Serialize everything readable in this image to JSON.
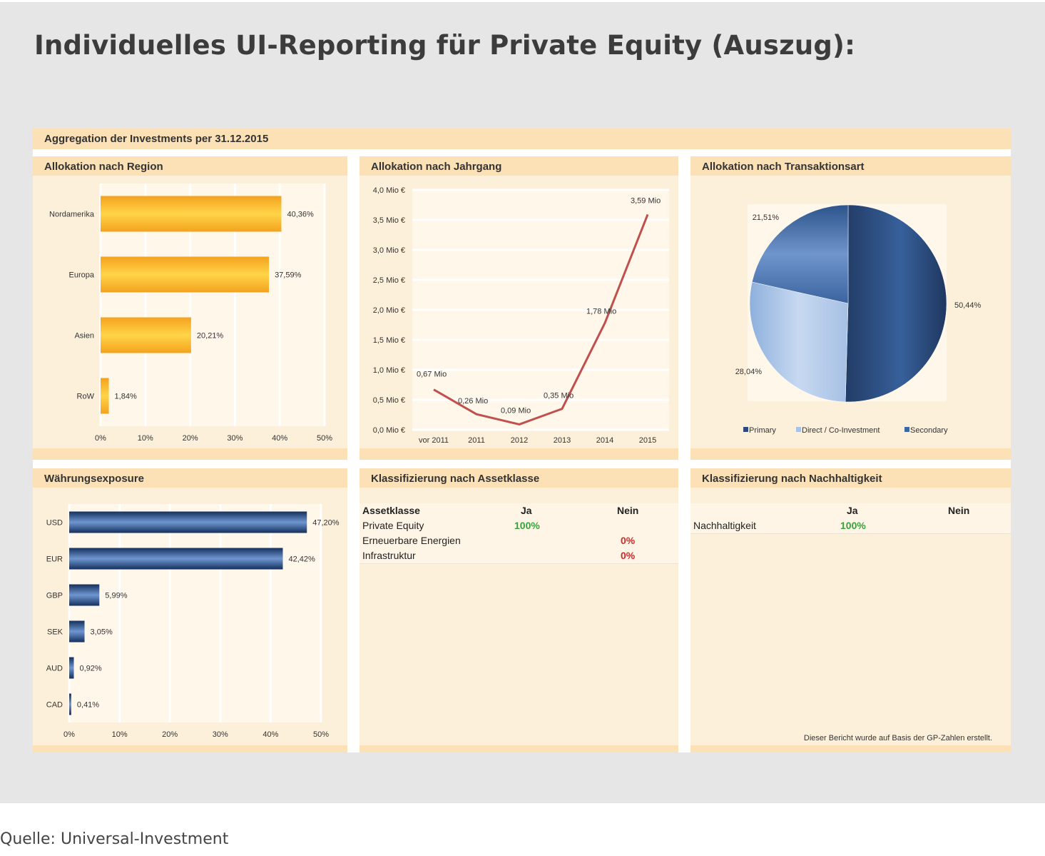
{
  "page": {
    "title": "Individuelles UI-Reporting für Private Equity (Auszug):",
    "source": "Quelle: Universal-Investment"
  },
  "report": {
    "header": "Aggregation der Investments per 31.12.2015",
    "footnote": "Dieser Bericht wurde auf Basis der GP-Zahlen erstellt."
  },
  "chart_data": [
    {
      "id": "region",
      "type": "bar",
      "orientation": "horizontal",
      "title": "Allokation nach Region",
      "categories": [
        "Nordamerika",
        "Europa",
        "Asien",
        "RoW"
      ],
      "values": [
        40.36,
        37.59,
        20.21,
        1.84
      ],
      "labels": [
        "40,36%",
        "37,59%",
        "20,21%",
        "1,84%"
      ],
      "xlim": [
        0,
        50
      ],
      "xticks": [
        "0%",
        "10%",
        "20%",
        "30%",
        "40%",
        "50%"
      ],
      "grid": true,
      "colors": {
        "bar": "#f5a623",
        "bar_light": "#ffd04a"
      }
    },
    {
      "id": "vintage",
      "type": "line",
      "title": "Allokation nach Jahrgang",
      "categories": [
        "vor 2011",
        "2011",
        "2012",
        "2013",
        "2014",
        "2015"
      ],
      "values": [
        0.67,
        0.26,
        0.09,
        0.35,
        1.78,
        3.59
      ],
      "labels": [
        "0,67 Mio",
        "0,26 Mio",
        "0,09 Mio",
        "0,35 Mio",
        "1,78 Mio",
        "3,59 Mio"
      ],
      "ylim": [
        0,
        4
      ],
      "yticks": [
        "0,0 Mio €",
        "0,5 Mio €",
        "1,0 Mio €",
        "1,5 Mio €",
        "2,0 Mio €",
        "2,5 Mio €",
        "3,0 Mio €",
        "3,5 Mio €",
        "4,0 Mio €"
      ],
      "grid": true,
      "colors": {
        "line": "#c0504d"
      }
    },
    {
      "id": "transaction",
      "type": "pie",
      "title": "Allokation nach Transaktionsart",
      "categories": [
        "Primary",
        "Direct / Co-Investment",
        "Secondary"
      ],
      "values": [
        50.44,
        28.04,
        21.51
      ],
      "labels": [
        "50,44%",
        "28,04%",
        "21,51%"
      ],
      "legend_position": "bottom",
      "colors": {
        "Primary": "#2b4a7a",
        "Direct / Co-Investment": "#a9c3e6",
        "Secondary": "#3d67a3"
      }
    },
    {
      "id": "currency",
      "type": "bar",
      "orientation": "horizontal",
      "title": "Währungsexposure",
      "categories": [
        "USD",
        "EUR",
        "GBP",
        "SEK",
        "AUD",
        "CAD"
      ],
      "values": [
        47.2,
        42.42,
        5.99,
        3.05,
        0.92,
        0.41
      ],
      "labels": [
        "47,20%",
        "42,42%",
        "5,99%",
        "3,05%",
        "0,92%",
        "0,41%"
      ],
      "xlim": [
        0,
        50
      ],
      "xticks": [
        "0%",
        "10%",
        "20%",
        "30%",
        "40%",
        "50%"
      ],
      "grid": true,
      "colors": {
        "bar": "#1f3b6b",
        "bar_light": "#5f87c4"
      }
    },
    {
      "id": "assetclass",
      "type": "table",
      "title": "Klassifizierung nach Assetklasse",
      "columns": [
        "Assetklasse",
        "Ja",
        "Nein"
      ],
      "rows": [
        [
          "Private Equity",
          "100%",
          ""
        ],
        [
          "Erneuerbare Energien",
          "",
          "0%"
        ],
        [
          "Infrastruktur",
          "",
          "0%"
        ]
      ]
    },
    {
      "id": "sustainability",
      "type": "table",
      "title": "Klassifizierung nach Nachhaltigkeit",
      "columns": [
        "",
        "Ja",
        "Nein"
      ],
      "rows": [
        [
          "Nachhaltigkeit",
          "100%",
          ""
        ]
      ]
    }
  ],
  "colors": {
    "positive": "#3aa13a",
    "negative": "#d02a2a",
    "panel_header": "#fce1b6",
    "panel_bg": "#fdf0da"
  }
}
